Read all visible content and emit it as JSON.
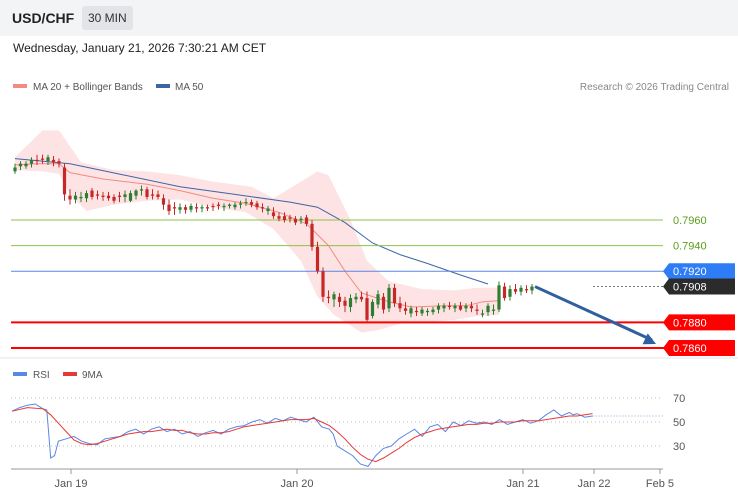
{
  "header": {
    "symbol": "USD/CHF",
    "timeframe": "30 MIN",
    "timestamp": "Wednesday, January 21, 2026 7:30:21 AM CET"
  },
  "legend": {
    "ma20": "MA 20 + Bollinger Bands",
    "ma50": "MA 50",
    "ma20_color": "#f28b82",
    "ma50_color": "#3d64a8"
  },
  "credit": "Research © 2026 Trading Central",
  "rsi_legend": {
    "rsi": "RSI",
    "ma9": "9MA",
    "rsi_color": "#5b86e5",
    "ma9_color": "#e53935"
  },
  "colors": {
    "up_candle": "#2e7d32",
    "down_candle": "#c62828",
    "bollinger_fill": "#fde3e3",
    "support": "#ff0000",
    "resistance": "#8bc34a",
    "pivot": "#5b86e5",
    "arrow": "#2f5f9e"
  },
  "chart_data": {
    "type": "candlestick",
    "instrument": "USD/CHF",
    "x_ticks": [
      "Jan 19",
      "Jan 20",
      "Jan 21",
      "Jan 22",
      "Feb 5"
    ],
    "price_levels": [
      {
        "value": "0.7960",
        "kind": "resistance"
      },
      {
        "value": "0.7940",
        "kind": "resistance"
      },
      {
        "value": "0.7920",
        "kind": "pivot"
      },
      {
        "value": "0.7908",
        "kind": "last"
      },
      {
        "value": "0.7880",
        "kind": "support"
      },
      {
        "value": "0.7860",
        "kind": "support"
      }
    ],
    "forecast_direction": "down",
    "forecast_target": 0.786,
    "ma20": [
      [
        0,
        0.8003
      ],
      [
        4,
        0.8004
      ],
      [
        8,
        0.8004
      ],
      [
        10,
        0.7997
      ],
      [
        16,
        0.7992
      ],
      [
        24,
        0.7988
      ],
      [
        30,
        0.7983
      ],
      [
        36,
        0.7977
      ],
      [
        42,
        0.7973
      ],
      [
        48,
        0.7966
      ],
      [
        53,
        0.7957
      ],
      [
        57,
        0.794
      ],
      [
        60,
        0.792
      ],
      [
        63,
        0.7903
      ],
      [
        68,
        0.7896
      ],
      [
        72,
        0.7892
      ],
      [
        78,
        0.7893
      ],
      [
        82,
        0.7893
      ],
      [
        85,
        0.7896
      ],
      [
        88,
        0.7897
      ]
    ],
    "ma50": [
      [
        0,
        0.8008
      ],
      [
        10,
        0.8004
      ],
      [
        20,
        0.7995
      ],
      [
        30,
        0.7986
      ],
      [
        40,
        0.798
      ],
      [
        50,
        0.7974
      ],
      [
        55,
        0.797
      ],
      [
        60,
        0.7958
      ],
      [
        65,
        0.7942
      ],
      [
        70,
        0.7933
      ],
      [
        75,
        0.7926
      ],
      [
        81,
        0.7917
      ],
      [
        86,
        0.791
      ]
    ],
    "bollinger_upper": [
      [
        0,
        0.8009
      ],
      [
        5,
        0.803
      ],
      [
        8,
        0.803
      ],
      [
        12,
        0.8005
      ],
      [
        18,
        0.7999
      ],
      [
        24,
        0.7998
      ],
      [
        30,
        0.7995
      ],
      [
        36,
        0.799
      ],
      [
        43,
        0.7986
      ],
      [
        47,
        0.7977
      ],
      [
        52,
        0.799
      ],
      [
        55,
        0.7998
      ],
      [
        57,
        0.7995
      ],
      [
        61,
        0.796
      ],
      [
        64,
        0.7928
      ],
      [
        68,
        0.7912
      ],
      [
        74,
        0.7906
      ],
      [
        80,
        0.7905
      ],
      [
        84,
        0.7907
      ],
      [
        88,
        0.7907
      ]
    ],
    "bollinger_lower": [
      [
        0,
        0.7999
      ],
      [
        5,
        0.7998
      ],
      [
        8,
        0.7996
      ],
      [
        10,
        0.798
      ],
      [
        13,
        0.7967
      ],
      [
        18,
        0.7972
      ],
      [
        24,
        0.7975
      ],
      [
        30,
        0.7976
      ],
      [
        36,
        0.797
      ],
      [
        42,
        0.7966
      ],
      [
        47,
        0.7953
      ],
      [
        52,
        0.7928
      ],
      [
        55,
        0.79
      ],
      [
        58,
        0.7886
      ],
      [
        63,
        0.7872
      ],
      [
        66,
        0.7874
      ],
      [
        70,
        0.7879
      ],
      [
        74,
        0.788
      ],
      [
        80,
        0.7882
      ],
      [
        84,
        0.7885
      ],
      [
        88,
        0.7886
      ]
    ],
    "candles": [
      [
        0.7998,
        0.8004,
        0.7996,
        0.8001
      ],
      [
        0.8002,
        0.8006,
        0.7999,
        0.8004
      ],
      [
        0.8002,
        0.8006,
        0.8,
        0.8004
      ],
      [
        0.8004,
        0.8009,
        0.8001,
        0.8007
      ],
      [
        0.8007,
        0.8011,
        0.8003,
        0.8006
      ],
      [
        0.8008,
        0.8011,
        0.8004,
        0.8007
      ],
      [
        0.8006,
        0.8011,
        0.8003,
        0.8009
      ],
      [
        0.8007,
        0.801,
        0.8002,
        0.8005
      ],
      [
        0.8006,
        0.8008,
        0.8001,
        0.8004
      ],
      [
        0.8001,
        0.8004,
        0.7975,
        0.798
      ],
      [
        0.7979,
        0.7984,
        0.7972,
        0.7976
      ],
      [
        0.7976,
        0.7982,
        0.7973,
        0.7979
      ],
      [
        0.7977,
        0.7982,
        0.7974,
        0.7978
      ],
      [
        0.7977,
        0.7983,
        0.7974,
        0.7981
      ],
      [
        0.7983,
        0.7985,
        0.7976,
        0.7978
      ],
      [
        0.798,
        0.7983,
        0.7976,
        0.7979
      ],
      [
        0.7979,
        0.7982,
        0.7975,
        0.7978
      ],
      [
        0.7979,
        0.7982,
        0.7975,
        0.7977
      ],
      [
        0.7978,
        0.798,
        0.7973,
        0.7975
      ],
      [
        0.7979,
        0.7982,
        0.7974,
        0.7978
      ],
      [
        0.7978,
        0.7983,
        0.7974,
        0.798
      ],
      [
        0.7975,
        0.7983,
        0.7974,
        0.7981
      ],
      [
        0.7979,
        0.7984,
        0.7976,
        0.7983
      ],
      [
        0.7983,
        0.7987,
        0.7979,
        0.7984
      ],
      [
        0.7984,
        0.7986,
        0.7976,
        0.7978
      ],
      [
        0.798,
        0.7984,
        0.7976,
        0.7979
      ],
      [
        0.798,
        0.7983,
        0.7976,
        0.7978
      ],
      [
        0.7977,
        0.798,
        0.7968,
        0.7972
      ],
      [
        0.7972,
        0.7976,
        0.7964,
        0.7967
      ],
      [
        0.797,
        0.7974,
        0.7964,
        0.7969
      ],
      [
        0.7968,
        0.7973,
        0.7965,
        0.797
      ],
      [
        0.797,
        0.7972,
        0.7965,
        0.7968
      ],
      [
        0.7968,
        0.7973,
        0.7966,
        0.7971
      ],
      [
        0.797,
        0.7973,
        0.7966,
        0.7969
      ],
      [
        0.7969,
        0.7972,
        0.7966,
        0.797
      ],
      [
        0.797,
        0.7972,
        0.7967,
        0.7969
      ],
      [
        0.7971,
        0.7973,
        0.7967,
        0.797
      ],
      [
        0.7972,
        0.7974,
        0.7968,
        0.7971
      ],
      [
        0.797,
        0.7973,
        0.7967,
        0.7971
      ],
      [
        0.7971,
        0.7973,
        0.7969,
        0.7972
      ],
      [
        0.797,
        0.7974,
        0.7968,
        0.7972
      ],
      [
        0.7972,
        0.7975,
        0.7969,
        0.7973
      ],
      [
        0.7974,
        0.7977,
        0.7971,
        0.7974
      ],
      [
        0.7974,
        0.7976,
        0.797,
        0.7972
      ],
      [
        0.7973,
        0.7975,
        0.7968,
        0.797
      ],
      [
        0.797,
        0.7973,
        0.7966,
        0.7969
      ],
      [
        0.7967,
        0.7971,
        0.7964,
        0.7969
      ],
      [
        0.7966,
        0.797,
        0.7961,
        0.7963
      ],
      [
        0.7963,
        0.7966,
        0.7959,
        0.7961
      ],
      [
        0.7963,
        0.7966,
        0.7958,
        0.796
      ],
      [
        0.7962,
        0.7964,
        0.7958,
        0.7961
      ],
      [
        0.7961,
        0.7963,
        0.7956,
        0.7958
      ],
      [
        0.796,
        0.7963,
        0.7957,
        0.7961
      ],
      [
        0.7962,
        0.7964,
        0.7955,
        0.7957
      ],
      [
        0.7957,
        0.796,
        0.7936,
        0.7939
      ],
      [
        0.7939,
        0.7943,
        0.7918,
        0.792
      ],
      [
        0.792,
        0.7923,
        0.7896,
        0.79
      ],
      [
        0.79,
        0.7905,
        0.7895,
        0.7899
      ],
      [
        0.7898,
        0.7904,
        0.7892,
        0.7902
      ],
      [
        0.79,
        0.7903,
        0.7892,
        0.7896
      ],
      [
        0.7897,
        0.79,
        0.7888,
        0.7893
      ],
      [
        0.7892,
        0.7902,
        0.7888,
        0.7899
      ],
      [
        0.7898,
        0.7903,
        0.7895,
        0.79
      ],
      [
        0.79,
        0.7904,
        0.7896,
        0.7898
      ],
      [
        0.7899,
        0.7904,
        0.788,
        0.7882
      ],
      [
        0.7885,
        0.7898,
        0.7883,
        0.7896
      ],
      [
        0.7894,
        0.7905,
        0.7891,
        0.7902
      ],
      [
        0.79,
        0.7903,
        0.7887,
        0.789
      ],
      [
        0.7891,
        0.791,
        0.7888,
        0.7907
      ],
      [
        0.7907,
        0.791,
        0.7892,
        0.7895
      ],
      [
        0.7895,
        0.79,
        0.7888,
        0.7891
      ],
      [
        0.7891,
        0.7896,
        0.7886,
        0.7889
      ],
      [
        0.7887,
        0.7893,
        0.7884,
        0.7891
      ],
      [
        0.7889,
        0.7892,
        0.7885,
        0.7888
      ],
      [
        0.7887,
        0.7892,
        0.7885,
        0.789
      ],
      [
        0.7888,
        0.7891,
        0.7885,
        0.7889
      ],
      [
        0.7888,
        0.7892,
        0.7886,
        0.789
      ],
      [
        0.789,
        0.7895,
        0.7887,
        0.7893
      ],
      [
        0.7891,
        0.7895,
        0.7888,
        0.7893
      ],
      [
        0.7893,
        0.7896,
        0.789,
        0.7892
      ],
      [
        0.7891,
        0.7895,
        0.7888,
        0.7893
      ],
      [
        0.7893,
        0.7896,
        0.7889,
        0.789
      ],
      [
        0.7891,
        0.7895,
        0.7888,
        0.7893
      ],
      [
        0.7893,
        0.7896,
        0.7888,
        0.7891
      ],
      [
        0.789,
        0.7894,
        0.7886,
        0.7889
      ],
      [
        0.7886,
        0.789,
        0.7884,
        0.7887
      ],
      [
        0.7888,
        0.7895,
        0.7885,
        0.7893
      ],
      [
        0.7889,
        0.7894,
        0.7886,
        0.789
      ],
      [
        0.789,
        0.7912,
        0.7888,
        0.7909
      ],
      [
        0.7908,
        0.7911,
        0.7897,
        0.7899
      ],
      [
        0.79,
        0.7909,
        0.7897,
        0.7906
      ],
      [
        0.7906,
        0.791,
        0.7902,
        0.7904
      ],
      [
        0.7904,
        0.7909,
        0.7901,
        0.7907
      ],
      [
        0.7906,
        0.7909,
        0.7903,
        0.7905
      ],
      [
        0.7905,
        0.791,
        0.7902,
        0.7908
      ]
    ],
    "rsi": [
      [
        0,
        59
      ],
      [
        2,
        62
      ],
      [
        4,
        64
      ],
      [
        6,
        65
      ],
      [
        7,
        63
      ],
      [
        8,
        61
      ],
      [
        9,
        60
      ],
      [
        10,
        20
      ],
      [
        11,
        22
      ],
      [
        12,
        34
      ],
      [
        14,
        36
      ],
      [
        16,
        38
      ],
      [
        18,
        34
      ],
      [
        20,
        32
      ],
      [
        22,
        31
      ],
      [
        24,
        36
      ],
      [
        26,
        37
      ],
      [
        28,
        38
      ],
      [
        30,
        42
      ],
      [
        32,
        44
      ],
      [
        34,
        40
      ],
      [
        36,
        44
      ],
      [
        38,
        46
      ],
      [
        40,
        42
      ],
      [
        42,
        44
      ],
      [
        44,
        40
      ],
      [
        46,
        42
      ],
      [
        48,
        38
      ],
      [
        50,
        41
      ],
      [
        52,
        43
      ],
      [
        54,
        40
      ],
      [
        56,
        44
      ],
      [
        58,
        46
      ],
      [
        60,
        47
      ],
      [
        62,
        50
      ],
      [
        64,
        52
      ],
      [
        66,
        49
      ],
      [
        68,
        53
      ],
      [
        70,
        51
      ],
      [
        72,
        54
      ],
      [
        74,
        52
      ],
      [
        76,
        50
      ],
      [
        78,
        54
      ],
      [
        80,
        46
      ],
      [
        82,
        44
      ],
      [
        83,
        40
      ],
      [
        84,
        30
      ],
      [
        86,
        26
      ],
      [
        88,
        22
      ],
      [
        90,
        15
      ],
      [
        92,
        13
      ],
      [
        94,
        22
      ],
      [
        96,
        28
      ],
      [
        98,
        30
      ],
      [
        100,
        36
      ],
      [
        102,
        40
      ],
      [
        104,
        44
      ],
      [
        106,
        38
      ],
      [
        108,
        46
      ],
      [
        110,
        48
      ],
      [
        112,
        42
      ],
      [
        114,
        50
      ],
      [
        116,
        47
      ],
      [
        118,
        51
      ],
      [
        120,
        49
      ],
      [
        122,
        50
      ],
      [
        124,
        48
      ],
      [
        126,
        52
      ],
      [
        128,
        48
      ],
      [
        130,
        50
      ],
      [
        132,
        52
      ],
      [
        134,
        49
      ],
      [
        136,
        51
      ],
      [
        138,
        56
      ],
      [
        140,
        60
      ],
      [
        142,
        55
      ],
      [
        144,
        58
      ],
      [
        145,
        56
      ],
      [
        146,
        57
      ],
      [
        148,
        54
      ],
      [
        150,
        55
      ]
    ],
    "rsi_ma9": [
      [
        0,
        59
      ],
      [
        4,
        62
      ],
      [
        8,
        61
      ],
      [
        10,
        56
      ],
      [
        12,
        49
      ],
      [
        14,
        42
      ],
      [
        16,
        35
      ],
      [
        18,
        32
      ],
      [
        20,
        31
      ],
      [
        22,
        32
      ],
      [
        24,
        34
      ],
      [
        26,
        36
      ],
      [
        28,
        38
      ],
      [
        30,
        40
      ],
      [
        32,
        41
      ],
      [
        34,
        42
      ],
      [
        36,
        42
      ],
      [
        38,
        43
      ],
      [
        40,
        44
      ],
      [
        42,
        43
      ],
      [
        44,
        43
      ],
      [
        46,
        41
      ],
      [
        48,
        40
      ],
      [
        50,
        40
      ],
      [
        52,
        41
      ],
      [
        54,
        41
      ],
      [
        56,
        42
      ],
      [
        58,
        44
      ],
      [
        60,
        46
      ],
      [
        62,
        47
      ],
      [
        64,
        48
      ],
      [
        66,
        49
      ],
      [
        68,
        50
      ],
      [
        70,
        51
      ],
      [
        72,
        52
      ],
      [
        74,
        52
      ],
      [
        76,
        52
      ],
      [
        78,
        53
      ],
      [
        80,
        50
      ],
      [
        82,
        47
      ],
      [
        84,
        42
      ],
      [
        86,
        36
      ],
      [
        88,
        29
      ],
      [
        90,
        23
      ],
      [
        92,
        19
      ],
      [
        94,
        17
      ],
      [
        96,
        20
      ],
      [
        98,
        24
      ],
      [
        100,
        28
      ],
      [
        102,
        33
      ],
      [
        104,
        37
      ],
      [
        106,
        40
      ],
      [
        108,
        42
      ],
      [
        110,
        44
      ],
      [
        112,
        45
      ],
      [
        114,
        46
      ],
      [
        116,
        47
      ],
      [
        118,
        48
      ],
      [
        120,
        48
      ],
      [
        122,
        49
      ],
      [
        124,
        49
      ],
      [
        126,
        50
      ],
      [
        128,
        50
      ],
      [
        130,
        50
      ],
      [
        132,
        51
      ],
      [
        134,
        51
      ],
      [
        136,
        51
      ],
      [
        138,
        52
      ],
      [
        140,
        53
      ],
      [
        142,
        54
      ],
      [
        144,
        55
      ],
      [
        146,
        55
      ],
      [
        148,
        56
      ],
      [
        150,
        57
      ]
    ],
    "rsi_ticks": [
      "70",
      "50",
      "30"
    ],
    "rsi_ylim": [
      0,
      100
    ]
  }
}
